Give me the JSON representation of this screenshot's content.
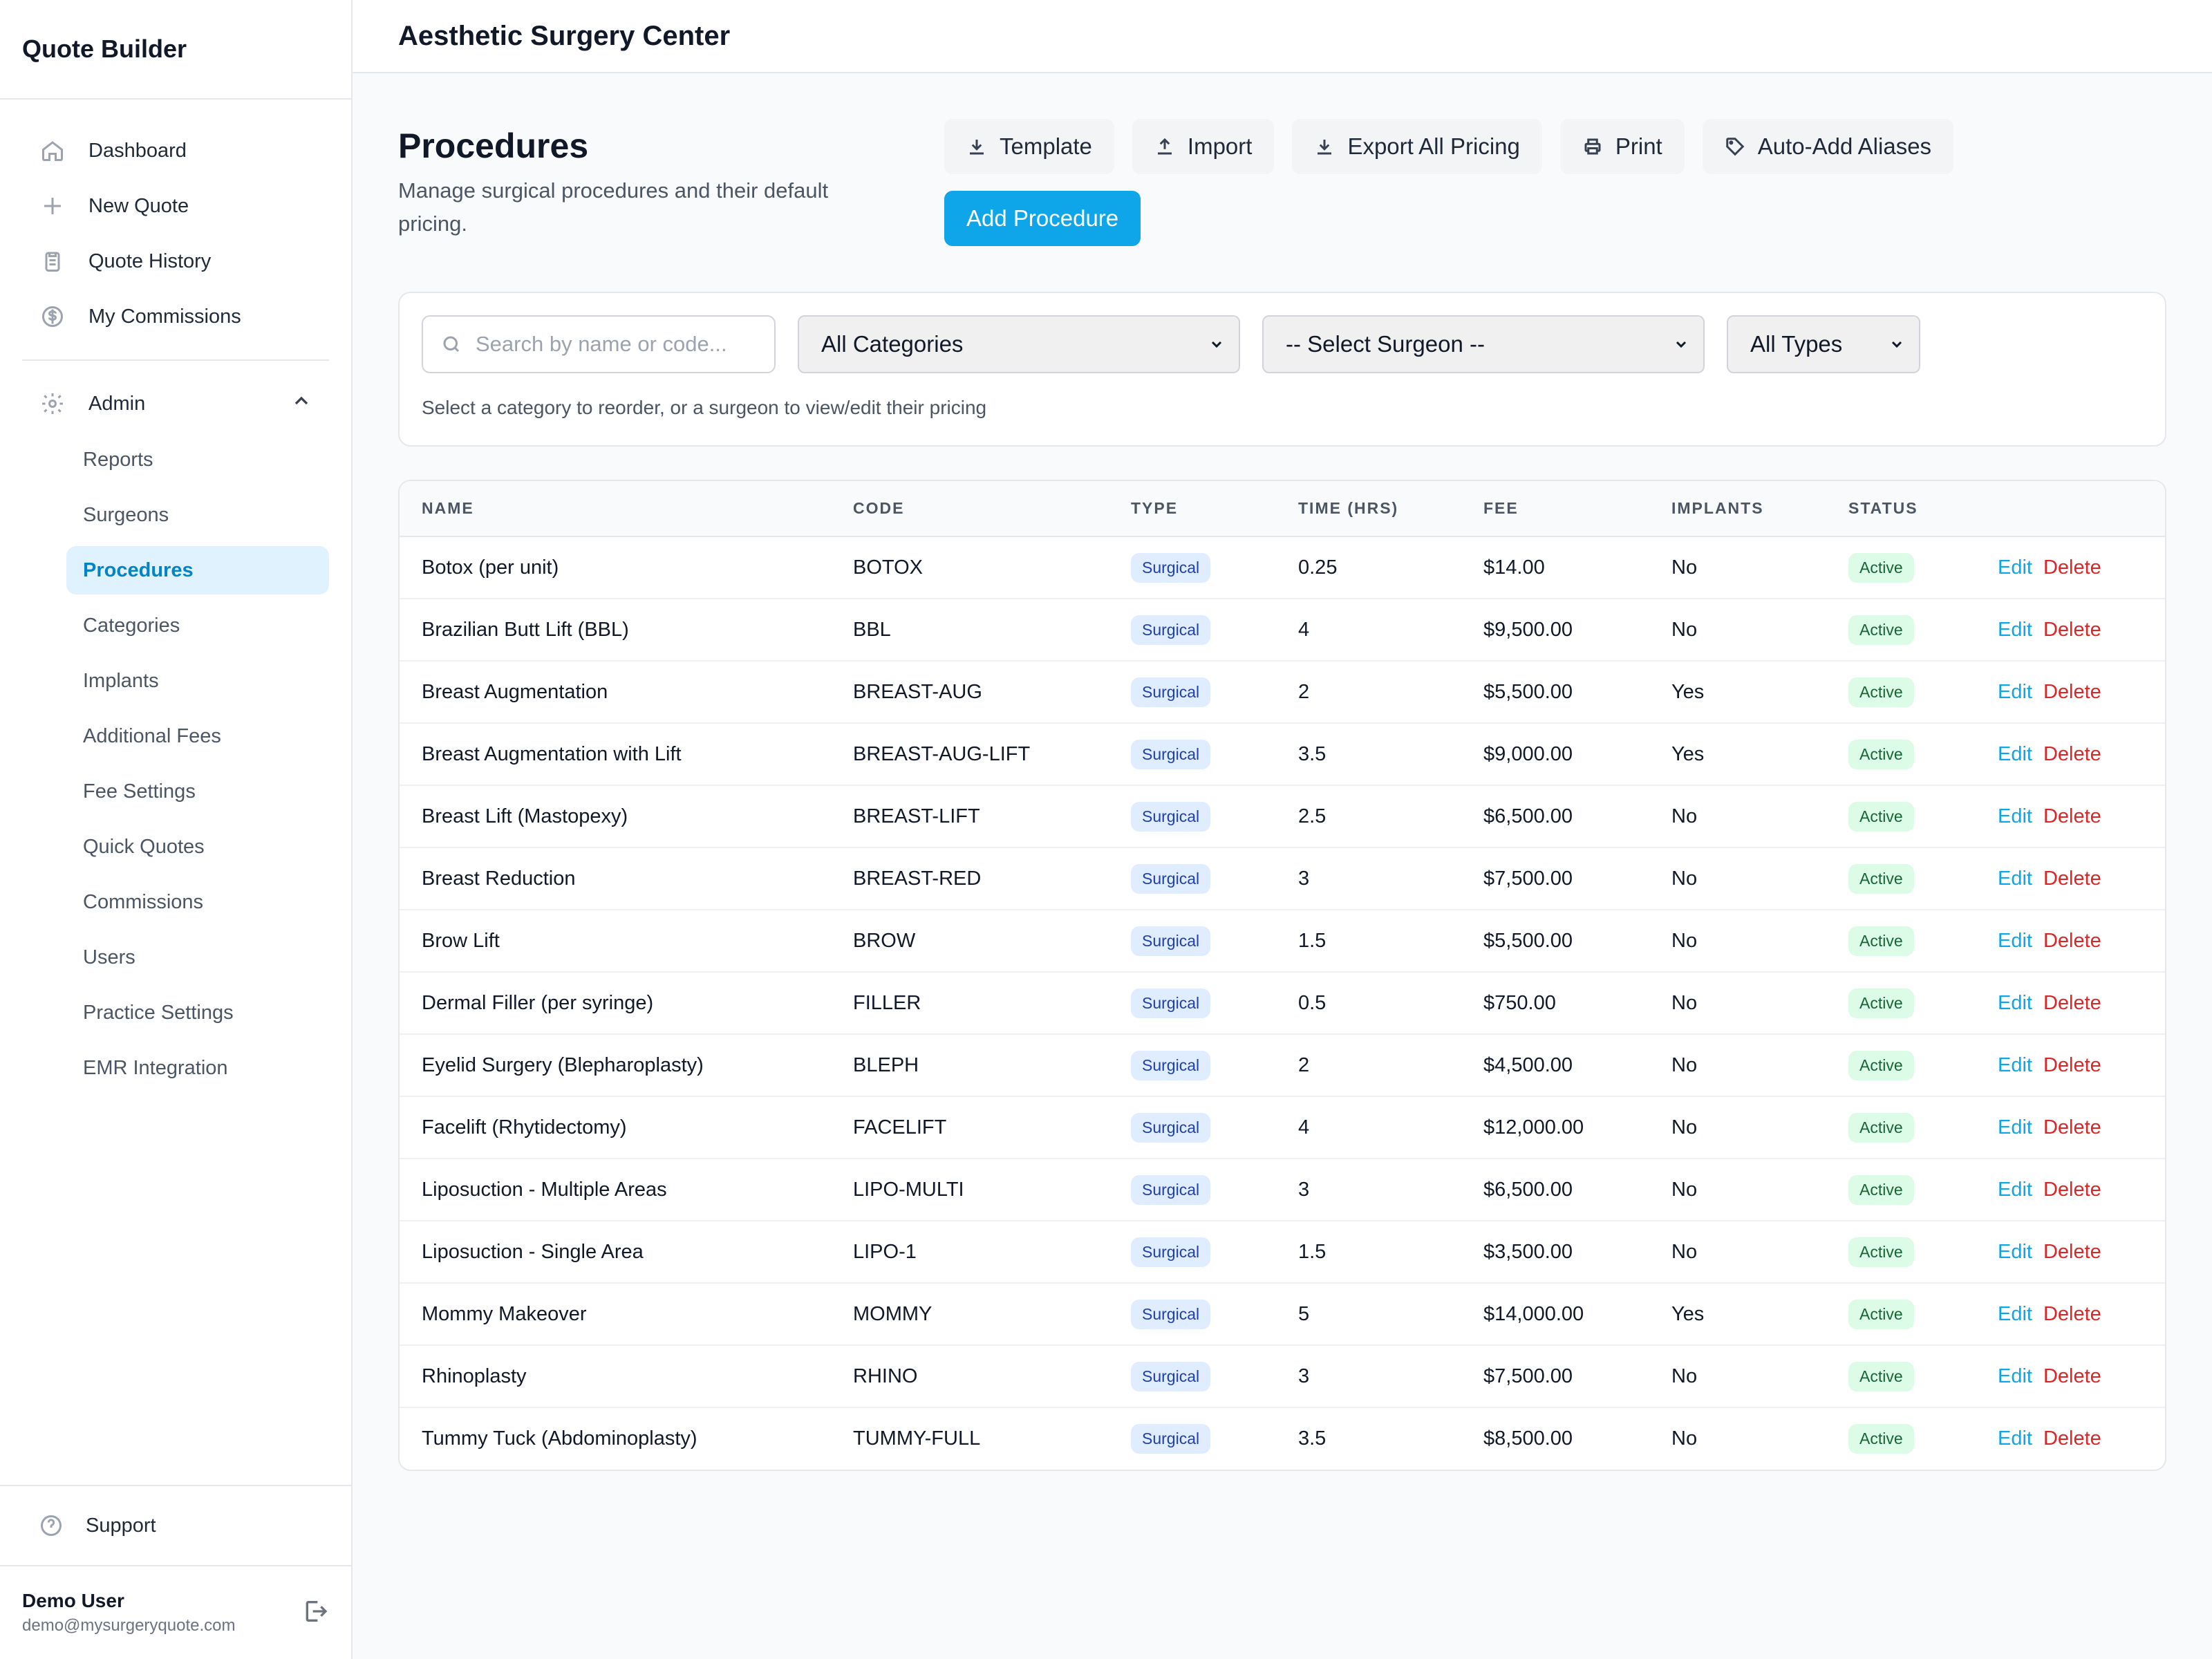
{
  "app": {
    "brand": "Quote Builder",
    "org_title": "Aesthetic Surgery Center"
  },
  "nav": {
    "primary": [
      {
        "label": "Dashboard",
        "icon": "home-icon"
      },
      {
        "label": "New Quote",
        "icon": "plus-icon"
      },
      {
        "label": "Quote History",
        "icon": "clipboard-icon"
      },
      {
        "label": "My Commissions",
        "icon": "dollar-circle-icon"
      }
    ],
    "admin_label": "Admin",
    "admin_items": [
      {
        "label": "Reports"
      },
      {
        "label": "Surgeons"
      },
      {
        "label": "Procedures",
        "active": true
      },
      {
        "label": "Categories"
      },
      {
        "label": "Implants"
      },
      {
        "label": "Additional Fees"
      },
      {
        "label": "Fee Settings"
      },
      {
        "label": "Quick Quotes"
      },
      {
        "label": "Commissions"
      },
      {
        "label": "Users"
      },
      {
        "label": "Practice Settings"
      },
      {
        "label": "EMR Integration"
      }
    ],
    "support_label": "Support"
  },
  "user": {
    "name": "Demo User",
    "email": "demo@mysurgeryquote.com"
  },
  "page": {
    "title": "Procedures",
    "subtitle": "Manage surgical procedures and their default pricing.",
    "actions": {
      "template": "Template",
      "import": "Import",
      "export": "Export All Pricing",
      "print": "Print",
      "aliases": "Auto-Add Aliases",
      "add": "Add Procedure"
    }
  },
  "filters": {
    "search_placeholder": "Search by name or code...",
    "category": "All Categories",
    "surgeon": "-- Select Surgeon --",
    "type": "All Types",
    "hint": "Select a category to reorder, or a surgeon to view/edit their pricing"
  },
  "table": {
    "headers": [
      "NAME",
      "CODE",
      "TYPE",
      "TIME (HRS)",
      "FEE",
      "IMPLANTS",
      "STATUS",
      ""
    ],
    "edit_label": "Edit",
    "delete_label": "Delete",
    "rows": [
      {
        "name": "Botox (per unit)",
        "code": "BOTOX",
        "type": "Surgical",
        "time": "0.25",
        "fee": "$14.00",
        "implants": "No",
        "status": "Active"
      },
      {
        "name": "Brazilian Butt Lift (BBL)",
        "code": "BBL",
        "type": "Surgical",
        "time": "4",
        "fee": "$9,500.00",
        "implants": "No",
        "status": "Active"
      },
      {
        "name": "Breast Augmentation",
        "code": "BREAST-AUG",
        "type": "Surgical",
        "time": "2",
        "fee": "$5,500.00",
        "implants": "Yes",
        "status": "Active"
      },
      {
        "name": "Breast Augmentation with Lift",
        "code": "BREAST-AUG-LIFT",
        "type": "Surgical",
        "time": "3.5",
        "fee": "$9,000.00",
        "implants": "Yes",
        "status": "Active"
      },
      {
        "name": "Breast Lift (Mastopexy)",
        "code": "BREAST-LIFT",
        "type": "Surgical",
        "time": "2.5",
        "fee": "$6,500.00",
        "implants": "No",
        "status": "Active"
      },
      {
        "name": "Breast Reduction",
        "code": "BREAST-RED",
        "type": "Surgical",
        "time": "3",
        "fee": "$7,500.00",
        "implants": "No",
        "status": "Active"
      },
      {
        "name": "Brow Lift",
        "code": "BROW",
        "type": "Surgical",
        "time": "1.5",
        "fee": "$5,500.00",
        "implants": "No",
        "status": "Active"
      },
      {
        "name": "Dermal Filler (per syringe)",
        "code": "FILLER",
        "type": "Surgical",
        "time": "0.5",
        "fee": "$750.00",
        "implants": "No",
        "status": "Active"
      },
      {
        "name": "Eyelid Surgery (Blepharoplasty)",
        "code": "BLEPH",
        "type": "Surgical",
        "time": "2",
        "fee": "$4,500.00",
        "implants": "No",
        "status": "Active"
      },
      {
        "name": "Facelift (Rhytidectomy)",
        "code": "FACELIFT",
        "type": "Surgical",
        "time": "4",
        "fee": "$12,000.00",
        "implants": "No",
        "status": "Active"
      },
      {
        "name": "Liposuction - Multiple Areas",
        "code": "LIPO-MULTI",
        "type": "Surgical",
        "time": "3",
        "fee": "$6,500.00",
        "implants": "No",
        "status": "Active"
      },
      {
        "name": "Liposuction - Single Area",
        "code": "LIPO-1",
        "type": "Surgical",
        "time": "1.5",
        "fee": "$3,500.00",
        "implants": "No",
        "status": "Active"
      },
      {
        "name": "Mommy Makeover",
        "code": "MOMMY",
        "type": "Surgical",
        "time": "5",
        "fee": "$14,000.00",
        "implants": "Yes",
        "status": "Active"
      },
      {
        "name": "Rhinoplasty",
        "code": "RHINO",
        "type": "Surgical",
        "time": "3",
        "fee": "$7,500.00",
        "implants": "No",
        "status": "Active"
      },
      {
        "name": "Tummy Tuck (Abdominoplasty)",
        "code": "TUMMY-FULL",
        "type": "Surgical",
        "time": "3.5",
        "fee": "$8,500.00",
        "implants": "No",
        "status": "Active"
      }
    ]
  },
  "colors": {
    "accent": "#0ea5e9",
    "danger": "#dc2626",
    "active_bg": "#e0f2fe"
  }
}
